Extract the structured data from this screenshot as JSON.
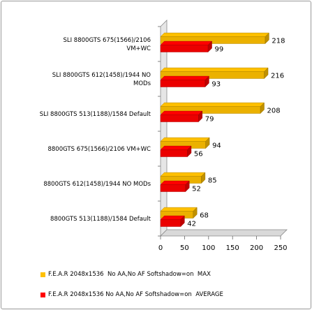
{
  "chart_data": {
    "type": "bar",
    "orientation": "horizontal",
    "style": "3d",
    "categories": [
      [
        "SLI 8800GTS 675(1566)/2106",
        "VM+WC"
      ],
      [
        "SLI 8800GTS 612(1458)/1944 NO",
        "MODs"
      ],
      [
        "SLI 8800GTS 513(1188)/1584 Default"
      ],
      [
        "8800GTS 675(1566)/2106 VM+WC"
      ],
      [
        "8800GTS 612(1458)/1944 NO MODs"
      ],
      [
        "8800GTS 513(1188)/1584 Default"
      ]
    ],
    "series": [
      {
        "name": "F.E.A.R 2048x1536  No AA,No AF Softshadow=on  MAX",
        "color": "#ffc000",
        "values": [
          218,
          216,
          208,
          94,
          85,
          68
        ]
      },
      {
        "name": "F.E.A.R 2048x1536 No AA,No AF Softshadow=on  AVERAGE",
        "color": "#ff0000",
        "values": [
          99,
          93,
          79,
          56,
          52,
          42
        ]
      }
    ],
    "xticks": [
      0,
      50,
      100,
      150,
      200,
      250
    ],
    "xlim": [
      0,
      250
    ],
    "grid": false,
    "legend_position": "bottom"
  }
}
